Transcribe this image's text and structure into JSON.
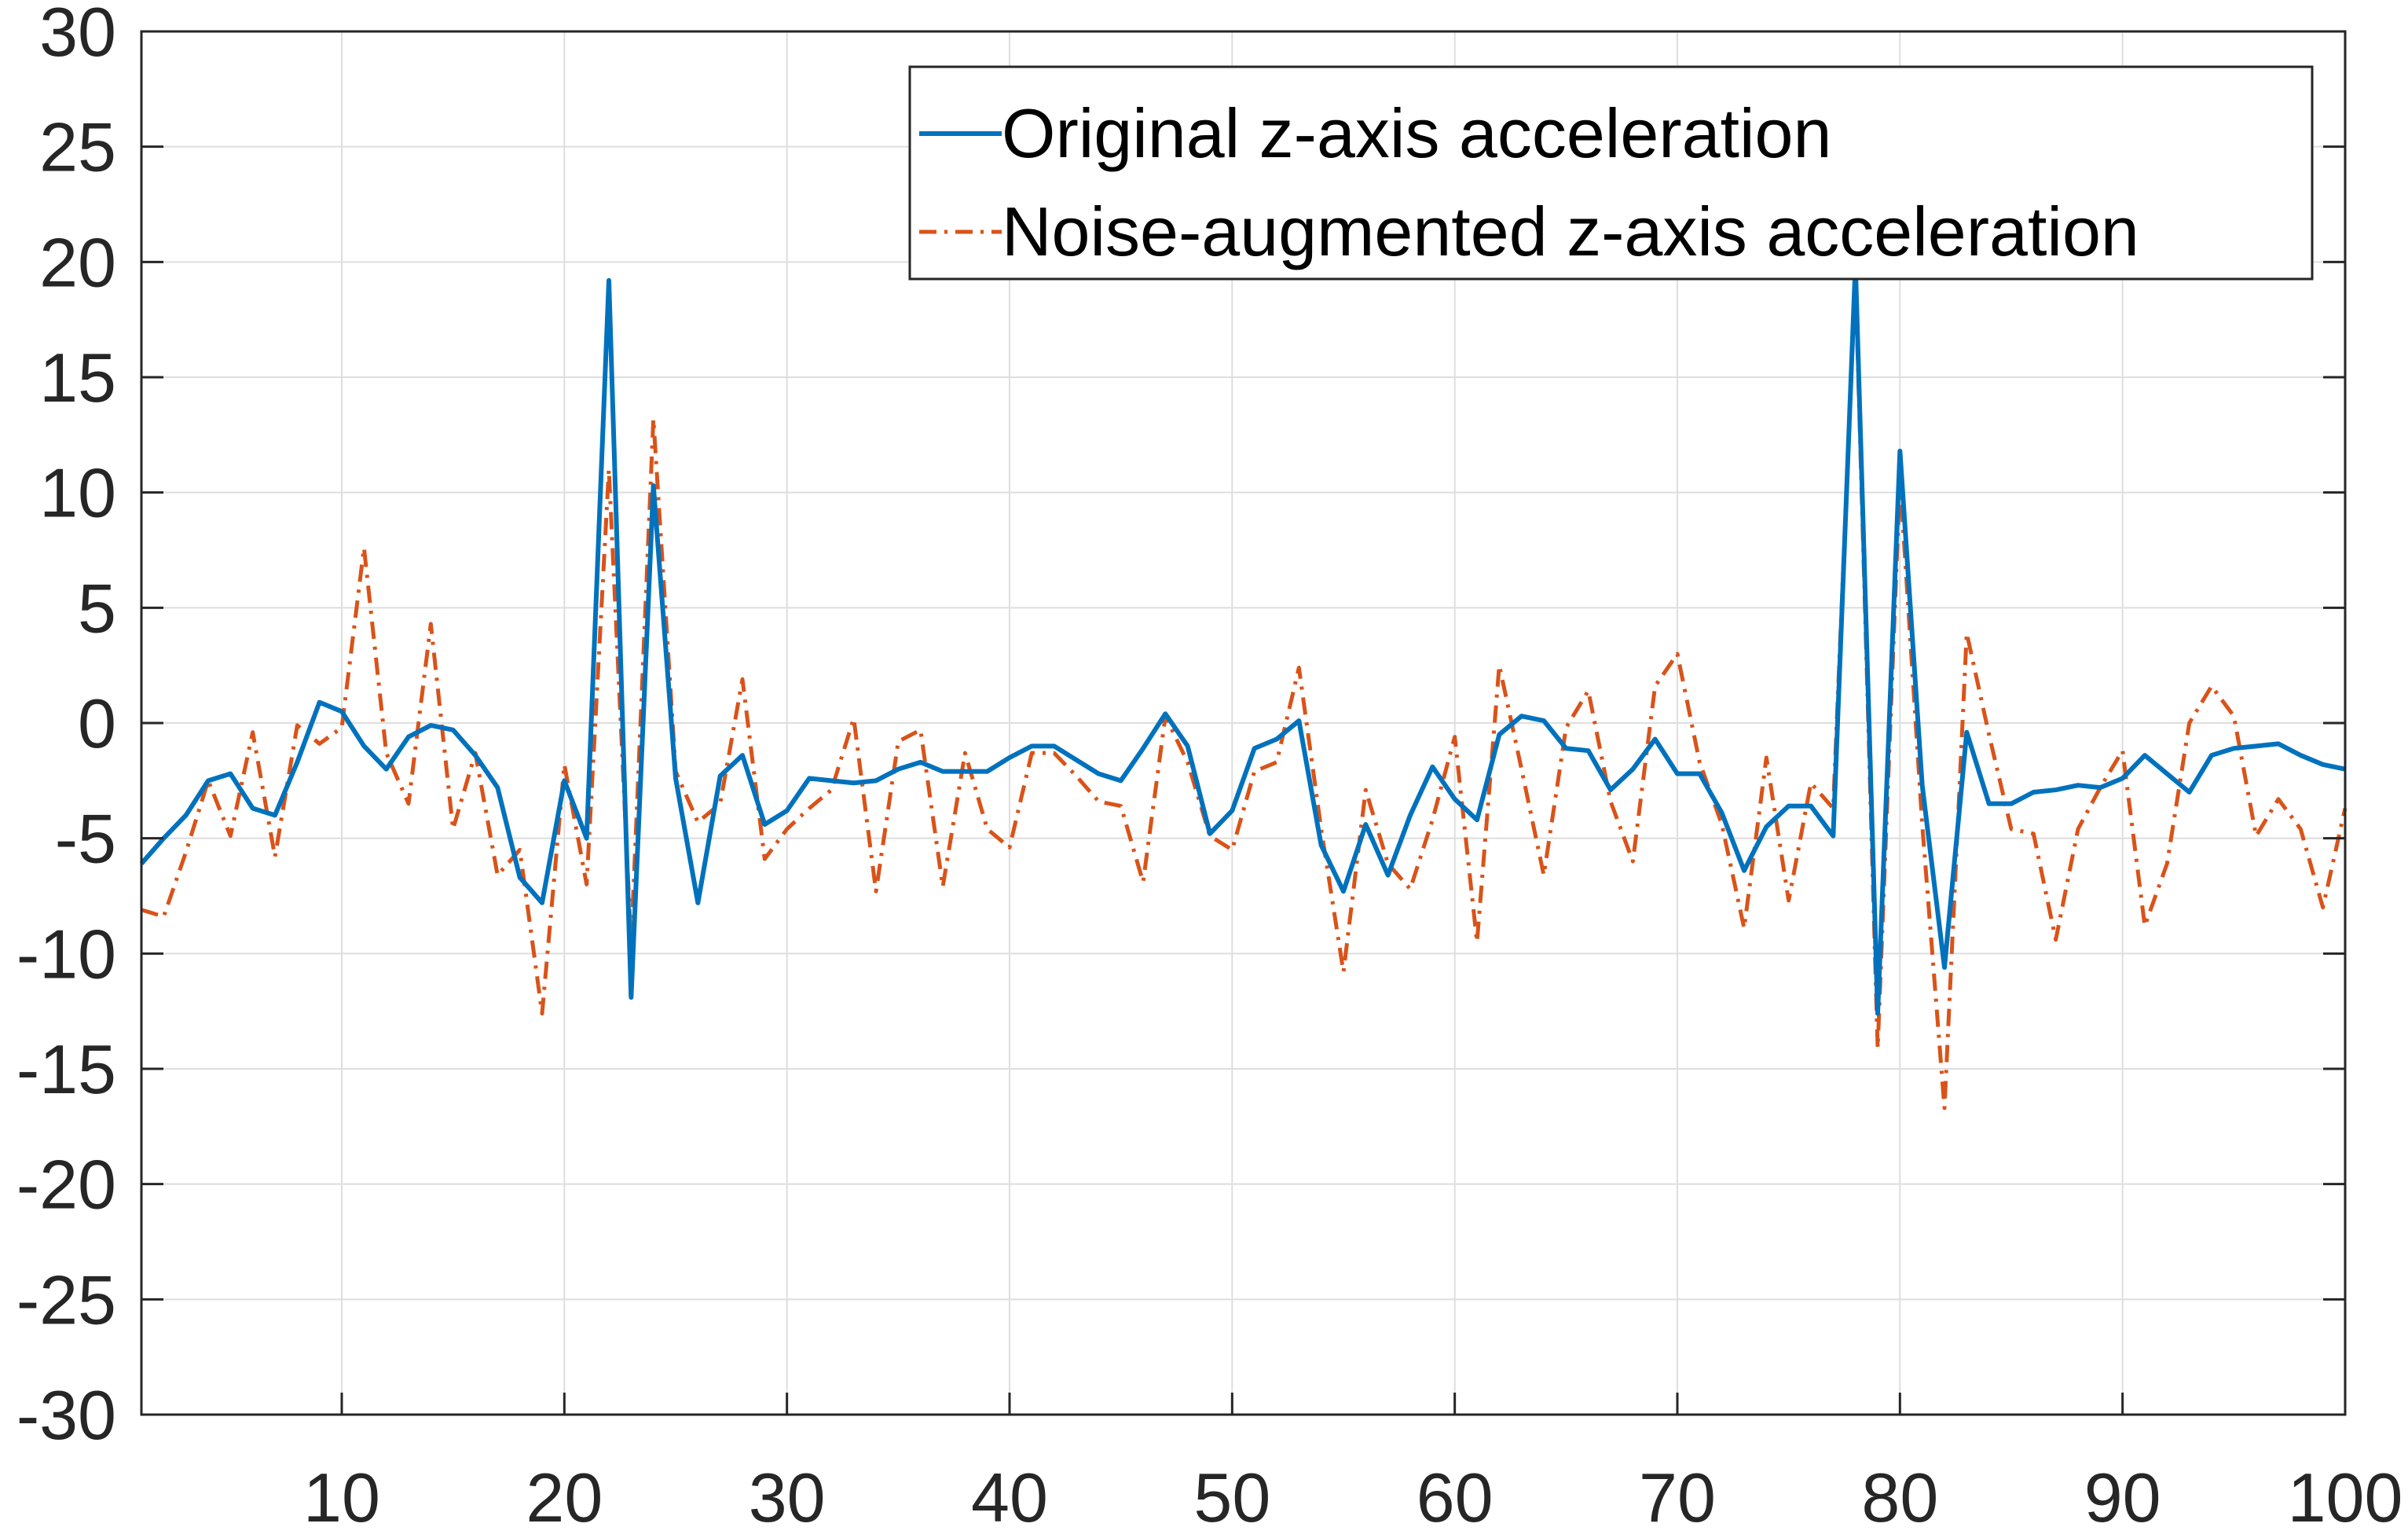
{
  "chart_data": {
    "type": "line",
    "title": "",
    "xlabel": "",
    "ylabel": "",
    "xlim": [
      1,
      100
    ],
    "ylim": [
      -30,
      30
    ],
    "grid": true,
    "legend_position": "top-right",
    "x_ticks": [
      10,
      20,
      30,
      40,
      50,
      60,
      70,
      80,
      90,
      100
    ],
    "y_ticks": [
      30,
      25,
      20,
      15,
      10,
      5,
      0,
      -5,
      -10,
      -15,
      -20,
      -25,
      -30
    ],
    "x_tick_labels": [
      "10",
      "20",
      "30",
      "40",
      "50",
      "60",
      "70",
      "80",
      "90",
      "100"
    ],
    "y_tick_labels": [
      "30",
      "25",
      "20",
      "15",
      "10",
      "5",
      "0",
      "-5",
      "-10",
      "-15",
      "-20",
      "-25",
      "-30"
    ],
    "x": [
      1,
      2,
      3,
      4,
      5,
      6,
      7,
      8,
      9,
      10,
      11,
      12,
      13,
      14,
      15,
      16,
      17,
      18,
      19,
      20,
      21,
      22,
      23,
      24,
      25,
      26,
      27,
      28,
      29,
      30,
      31,
      32,
      33,
      34,
      35,
      36,
      37,
      38,
      39,
      40,
      41,
      42,
      43,
      44,
      45,
      46,
      47,
      48,
      49,
      50,
      51,
      52,
      53,
      54,
      55,
      56,
      57,
      58,
      59,
      60,
      61,
      62,
      63,
      64,
      65,
      66,
      67,
      68,
      69,
      70,
      71,
      72,
      73,
      74,
      75,
      76,
      77,
      78,
      79,
      80,
      81,
      82,
      83,
      84,
      85,
      86,
      87,
      88,
      89,
      90,
      91,
      92,
      93,
      94,
      95,
      96,
      97,
      98,
      99,
      100
    ],
    "series": [
      {
        "name": "Original z-axis acceleration",
        "color": "#0072BD",
        "line_style": "solid",
        "values": [
          -6.1,
          -5.0,
          -4.0,
          -2.5,
          -2.2,
          -3.7,
          -4.0,
          -1.7,
          0.9,
          0.5,
          -1.0,
          -2.0,
          -0.6,
          -0.1,
          -0.3,
          -1.4,
          -2.8,
          -6.7,
          -7.8,
          -2.5,
          -5.0,
          19.2,
          -11.9,
          10.3,
          -2.4,
          -7.8,
          -2.3,
          -1.4,
          -4.4,
          -3.8,
          -2.4,
          -2.5,
          -2.6,
          -2.5,
          -2.0,
          -1.7,
          -2.1,
          -2.1,
          -2.1,
          -1.5,
          -1.0,
          -1.0,
          -1.6,
          -2.2,
          -2.5,
          -1.1,
          0.4,
          -1.0,
          -4.8,
          -3.8,
          -1.1,
          -0.7,
          0.1,
          -5.3,
          -7.3,
          -4.4,
          -6.6,
          -4.0,
          -1.9,
          -3.3,
          -4.2,
          -0.5,
          0.3,
          0.1,
          -1.1,
          -1.2,
          -2.9,
          -2.0,
          -0.7,
          -2.2,
          -2.2,
          -3.9,
          -6.4,
          -4.5,
          -3.6,
          -3.6,
          -4.9,
          19.9,
          -12.6,
          11.8,
          -2.7,
          -10.6,
          -0.4,
          -3.5,
          -3.5,
          -3.0,
          -2.9,
          -2.7,
          -2.8,
          -2.4,
          -1.4,
          -2.2,
          -3.0,
          -1.4,
          -1.1,
          -1.0,
          -0.9,
          -1.4,
          -1.8,
          -2.0
        ]
      },
      {
        "name": "Noise-augmented z-axis acceleration",
        "color": "#D95319",
        "line_style": "dash-dot",
        "values": [
          -8.1,
          -8.4,
          -5.6,
          -2.5,
          -4.9,
          -0.4,
          -5.8,
          -0.1,
          -0.9,
          -0.2,
          7.6,
          -1.3,
          -3.5,
          4.3,
          -4.6,
          -1.3,
          -6.6,
          -5.5,
          -12.6,
          -1.8,
          -7.0,
          11.0,
          -9.6,
          13.2,
          -2.1,
          -4.3,
          -3.5,
          1.9,
          -5.9,
          -4.6,
          -3.7,
          -2.9,
          0.2,
          -7.3,
          -0.8,
          -0.3,
          -7.1,
          -1.3,
          -4.6,
          -5.4,
          -1.3,
          -1.3,
          -2.3,
          -3.4,
          -3.6,
          -6.9,
          0.3,
          -1.7,
          -4.9,
          -5.5,
          -2.1,
          -1.7,
          2.4,
          -4.6,
          -10.8,
          -2.9,
          -6.1,
          -7.2,
          -4.2,
          -0.6,
          -9.5,
          2.5,
          -2.0,
          -6.6,
          -0.2,
          1.4,
          -3.4,
          -6.0,
          1.6,
          3.0,
          -1.7,
          -4.4,
          -8.9,
          -1.5,
          -7.7,
          -2.6,
          -3.7,
          19.3,
          -14.1,
          10.6,
          -4.4,
          -16.7,
          3.9,
          -0.5,
          -4.6,
          -4.8,
          -9.4,
          -4.6,
          -2.8,
          -1.2,
          -8.8,
          -6.1,
          0.0,
          1.6,
          0.3,
          -4.9,
          -3.3,
          -4.6,
          -8.0,
          -3.7
        ]
      }
    ]
  }
}
